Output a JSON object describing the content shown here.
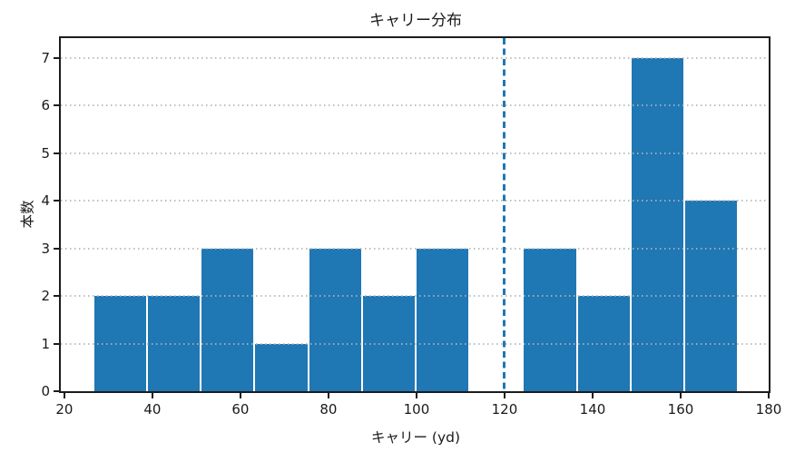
{
  "chart_data": {
    "type": "histogram",
    "title": "キャリー分布",
    "xlabel": "キャリー (yd)",
    "ylabel": "本数",
    "bin_edges": [
      26.6,
      38.8,
      51.0,
      63.2,
      75.4,
      87.6,
      99.8,
      112.0,
      124.2,
      136.4,
      148.6,
      160.8,
      173.0
    ],
    "counts": [
      2,
      2,
      3,
      1,
      3,
      2,
      3,
      0,
      3,
      2,
      7,
      4
    ],
    "xticks": [
      20,
      40,
      60,
      80,
      100,
      120,
      140,
      160,
      180
    ],
    "yticks": [
      0,
      1,
      2,
      3,
      4,
      5,
      6,
      7
    ],
    "xlim": [
      19.2,
      180
    ],
    "ylim": [
      0,
      7.42
    ],
    "grid": {
      "axis": "y",
      "style": "dotted",
      "color": "#b4b4b4"
    },
    "vline": {
      "x": 120,
      "style": "dashed",
      "color": "#1f77b4"
    },
    "bar_color": "#1f77b4",
    "legend_position": "none"
  },
  "colors": {
    "bar": "#1f77b4",
    "reference_line": "#1f77b4",
    "grid": "#b4b4b4",
    "spine": "#1c1c1c",
    "text": "#1a1a1a",
    "background": "#ffffff"
  }
}
